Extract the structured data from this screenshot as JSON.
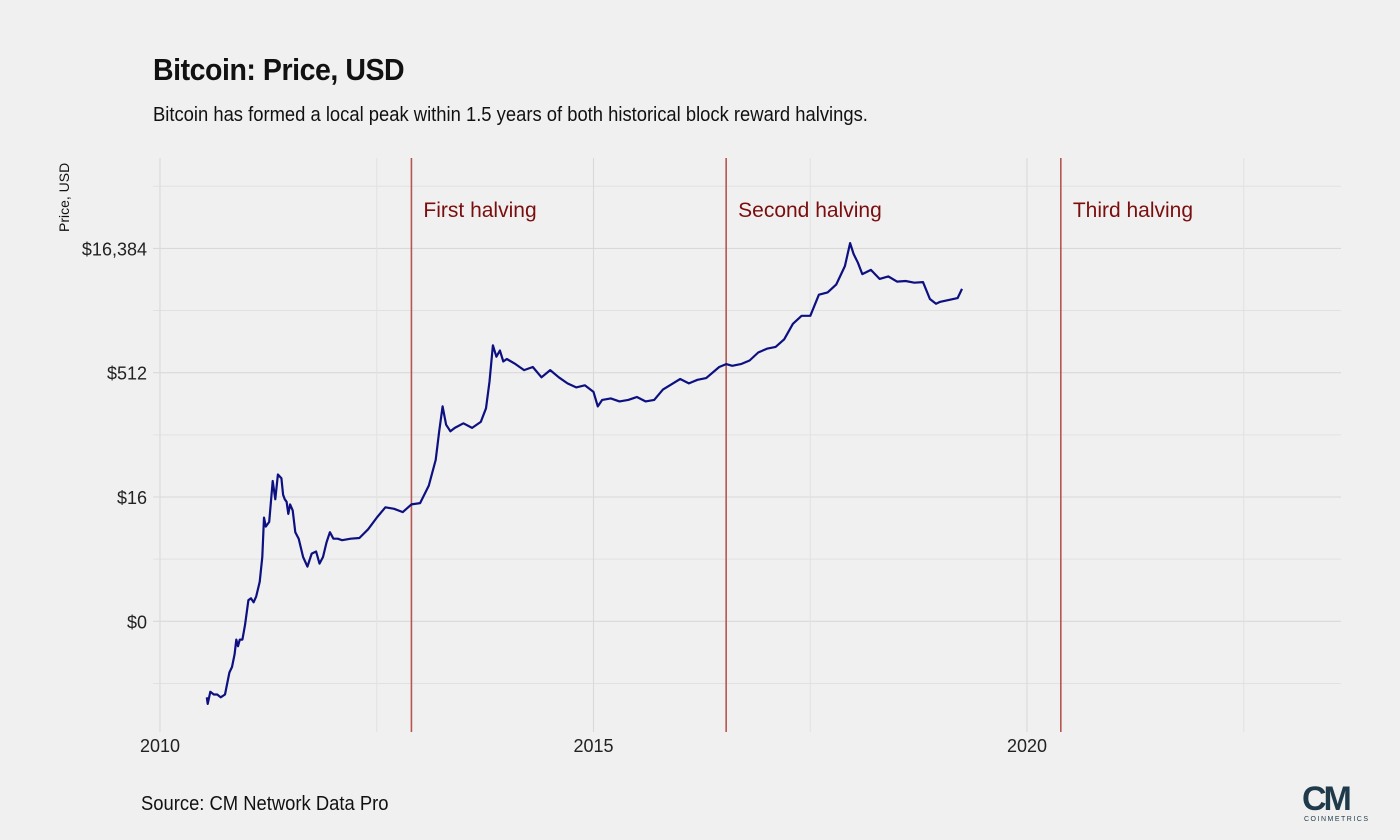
{
  "header": {
    "title": "Bitcoin: Price, USD",
    "subtitle": "Bitcoin has formed a local peak within 1.5 years of both historical block reward halvings."
  },
  "footer": {
    "source": "Source: CM Network Data Pro",
    "logo_text": "CM",
    "logo_subtext": "COINMETRICS"
  },
  "colors": {
    "background": "#f1f0f0",
    "line": "#0d1080",
    "halving": "#b5564f",
    "annotation": "#7a0e0e",
    "grid": "#d9d9d9"
  },
  "chart_data": {
    "type": "line",
    "title": "Bitcoin: Price, USD",
    "subtitle": "Bitcoin has formed a local peak within 1.5 years of both historical block reward halvings.",
    "xlabel": "",
    "ylabel": "Price, USD",
    "yscale": "log2",
    "grid": true,
    "x_ticks": [
      2010,
      2015,
      2020
    ],
    "x_tick_labels": [
      "2010",
      "2015",
      "2020"
    ],
    "y_ticks": [
      0.5,
      16,
      512,
      16384
    ],
    "y_tick_labels": [
      "$0",
      "$16",
      "$512",
      "$16,384"
    ],
    "xlim": [
      2010.0,
      2023.6
    ],
    "ylim": [
      0.016,
      65536
    ],
    "halvings": [
      {
        "x": 2012.9,
        "label": "First halving"
      },
      {
        "x": 2016.53,
        "label": "Second halving"
      },
      {
        "x": 2020.39,
        "label": "Third halving"
      }
    ],
    "series": [
      {
        "x": [
          2010.54,
          2010.55,
          2010.58,
          2010.62,
          2010.66,
          2010.7,
          2010.75,
          2010.8,
          2010.83,
          2010.86,
          2010.88,
          2010.9,
          2010.92,
          2010.95,
          2010.98,
          2011.02,
          2011.05,
          2011.08,
          2011.11,
          2011.15,
          2011.18,
          2011.2,
          2011.22,
          2011.26,
          2011.3,
          2011.33,
          2011.36,
          2011.4,
          2011.42,
          2011.44,
          2011.46,
          2011.48,
          2011.5,
          2011.53,
          2011.56,
          2011.6,
          2011.65,
          2011.7,
          2011.75,
          2011.8,
          2011.84,
          2011.88,
          2011.92,
          2011.96,
          2012.0,
          2012.05,
          2012.1,
          2012.2,
          2012.3,
          2012.4,
          2012.5,
          2012.6,
          2012.7,
          2012.8,
          2012.9,
          2013.0,
          2013.1,
          2013.18,
          2013.22,
          2013.26,
          2013.3,
          2013.35,
          2013.4,
          2013.5,
          2013.6,
          2013.7,
          2013.76,
          2013.8,
          2013.84,
          2013.88,
          2013.92,
          2013.96,
          2014.0,
          2014.1,
          2014.2,
          2014.3,
          2014.4,
          2014.5,
          2014.6,
          2014.7,
          2014.8,
          2014.9,
          2015.0,
          2015.05,
          2015.1,
          2015.2,
          2015.3,
          2015.4,
          2015.5,
          2015.6,
          2015.7,
          2015.8,
          2015.9,
          2016.0,
          2016.1,
          2016.2,
          2016.3,
          2016.45,
          2016.53,
          2016.6,
          2016.7,
          2016.8,
          2016.9,
          2017.0,
          2017.1,
          2017.2,
          2017.3,
          2017.4,
          2017.5,
          2017.6,
          2017.7,
          2017.8,
          2017.9,
          2017.96,
          2018.0,
          2018.05,
          2018.1,
          2018.2,
          2018.3,
          2018.4,
          2018.5,
          2018.6,
          2018.7,
          2018.8,
          2018.88,
          2018.95,
          2019.0,
          2019.1,
          2019.2,
          2019.25
        ],
        "y": [
          0.06,
          0.05,
          0.07,
          0.065,
          0.065,
          0.06,
          0.065,
          0.12,
          0.14,
          0.2,
          0.3,
          0.25,
          0.3,
          0.3,
          0.45,
          0.9,
          0.95,
          0.85,
          1.0,
          1.5,
          3.0,
          9.0,
          7.0,
          8.0,
          25.0,
          15.0,
          30.0,
          27.0,
          17.0,
          15.0,
          14.0,
          10.0,
          13.0,
          11.0,
          6.0,
          5.0,
          3.0,
          2.3,
          3.3,
          3.5,
          2.5,
          3.0,
          4.5,
          6.0,
          5.0,
          5.0,
          4.8,
          5.0,
          5.1,
          6.5,
          9.0,
          12.0,
          11.5,
          10.5,
          13.0,
          13.5,
          22.0,
          45.0,
          100.0,
          200.0,
          120.0,
          100.0,
          110.0,
          125.0,
          110.0,
          130.0,
          190.0,
          400.0,
          1100.0,
          800.0,
          950.0,
          700.0,
          750.0,
          650.0,
          550.0,
          600.0,
          450.0,
          550.0,
          450.0,
          380.0,
          340.0,
          360.0,
          300.0,
          200.0,
          240.0,
          250.0,
          230.0,
          240.0,
          260.0,
          230.0,
          240.0,
          320.0,
          370.0,
          430.0,
          380.0,
          420.0,
          440.0,
          600.0,
          650.0,
          620.0,
          650.0,
          720.0,
          900.0,
          1000.0,
          1050.0,
          1300.0,
          2000.0,
          2500.0,
          2500.0,
          4500.0,
          4800.0,
          6000.0,
          10000.0,
          19000.0,
          14000.0,
          11000.0,
          8000.0,
          9000.0,
          7000.0,
          7500.0,
          6500.0,
          6600.0,
          6300.0,
          6400.0,
          4000.0,
          3500.0,
          3700.0,
          3900.0,
          4100.0,
          5300.0
        ]
      }
    ]
  }
}
